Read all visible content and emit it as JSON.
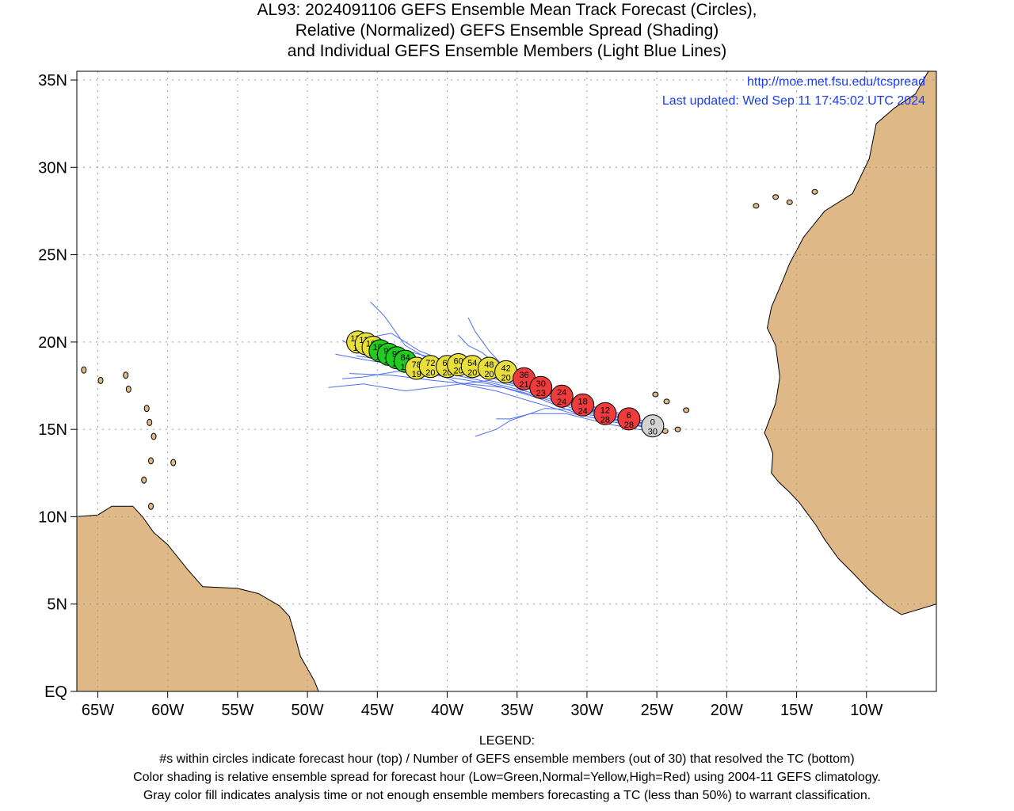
{
  "title": {
    "line1": "AL93: 2024091106 GEFS Ensemble Mean Track Forecast (Circles),",
    "line2": "Relative (Normalized) GEFS Ensemble Spread (Shading)",
    "line3": "and Individual GEFS Ensemble Members (Light Blue Lines)"
  },
  "credits": {
    "url": "http://moe.met.fsu.edu/tcspread",
    "updated": "Last updated: Wed Sep 11 17:45:02 UTC 2024"
  },
  "legend": {
    "heading": "LEGEND:",
    "line1": "#s within circles indicate forecast hour (top) / Number of GEFS ensemble members (out of 30) that resolved the TC (bottom)",
    "line2": "Color shading is relative ensemble spread for forecast hour (Low=Green,Normal=Yellow,High=Red) using 2004-11 GEFS climatology.",
    "line3": "Gray color fill indicates analysis time or not enough ensemble members forecasting a TC (less than 50%) to warrant classification."
  },
  "colors": {
    "land": "#deb887",
    "member_track": "#4f6ff0",
    "low_spread": "#1fcc1f",
    "normal_spread": "#e8df3a",
    "high_spread": "#ee3b3b",
    "analysis": "#d3d3d3",
    "credit_text": "#1a3cf0",
    "grid": "#9a9a9a"
  },
  "chart_data": {
    "type": "scatter",
    "xlim": [
      -66.5,
      -5
    ],
    "ylim": [
      0,
      35.5
    ],
    "x_ticks": [
      -65,
      -60,
      -55,
      -50,
      -45,
      -40,
      -35,
      -30,
      -25,
      -20,
      -15,
      -10
    ],
    "x_tick_labels": [
      "65W",
      "60W",
      "55W",
      "50W",
      "45W",
      "40W",
      "35W",
      "30W",
      "25W",
      "20W",
      "15W",
      "10W"
    ],
    "y_ticks": [
      0,
      5,
      10,
      15,
      20,
      25,
      30,
      35
    ],
    "y_tick_labels": [
      "EQ",
      "5N",
      "10N",
      "15N",
      "20N",
      "25N",
      "30N",
      "35N"
    ],
    "grid": true,
    "mean_track": [
      {
        "hour": "0",
        "members": "30",
        "lon": -25.3,
        "lat": 15.2,
        "spread": "analysis"
      },
      {
        "hour": "6",
        "members": "28",
        "lon": -27.0,
        "lat": 15.6,
        "spread": "high"
      },
      {
        "hour": "12",
        "members": "28",
        "lon": -28.7,
        "lat": 15.9,
        "spread": "high"
      },
      {
        "hour": "18",
        "members": "24",
        "lon": -30.3,
        "lat": 16.4,
        "spread": "high"
      },
      {
        "hour": "24",
        "members": "24",
        "lon": -31.8,
        "lat": 16.9,
        "spread": "high"
      },
      {
        "hour": "30",
        "members": "23",
        "lon": -33.3,
        "lat": 17.4,
        "spread": "high"
      },
      {
        "hour": "36",
        "members": "21",
        "lon": -34.5,
        "lat": 17.9,
        "spread": "high"
      },
      {
        "hour": "42",
        "members": "20",
        "lon": -35.8,
        "lat": 18.3,
        "spread": "normal"
      },
      {
        "hour": "48",
        "members": "20",
        "lon": -37.0,
        "lat": 18.5,
        "spread": "normal"
      },
      {
        "hour": "54",
        "members": "20",
        "lon": -38.2,
        "lat": 18.6,
        "spread": "normal"
      },
      {
        "hour": "60",
        "members": "20",
        "lon": -39.2,
        "lat": 18.7,
        "spread": "normal"
      },
      {
        "hour": "66",
        "members": "20",
        "lon": -40.0,
        "lat": 18.6,
        "spread": "normal"
      },
      {
        "hour": "72",
        "members": "20",
        "lon": -41.2,
        "lat": 18.6,
        "spread": "normal"
      },
      {
        "hour": "78",
        "members": "19",
        "lon": -42.2,
        "lat": 18.5,
        "spread": "normal"
      },
      {
        "hour": "84",
        "members": "18",
        "lon": -43.0,
        "lat": 18.9,
        "spread": "low"
      },
      {
        "hour": "90",
        "members": "18",
        "lon": -43.6,
        "lat": 19.1,
        "spread": "low"
      },
      {
        "hour": "96",
        "members": "18",
        "lon": -44.2,
        "lat": 19.3,
        "spread": "low"
      },
      {
        "hour": "102",
        "members": "18",
        "lon": -44.8,
        "lat": 19.5,
        "spread": "low"
      },
      {
        "hour": "108",
        "members": "17",
        "lon": -45.3,
        "lat": 19.7,
        "spread": "normal"
      },
      {
        "hour": "114",
        "members": "17",
        "lon": -45.8,
        "lat": 19.9,
        "spread": "normal"
      },
      {
        "hour": "120",
        "members": "17",
        "lon": -46.4,
        "lat": 20.0,
        "spread": "normal"
      }
    ],
    "member_tracks": [
      [
        [
          -25.3,
          15.2
        ],
        [
          -28,
          15.8
        ],
        [
          -31,
          16.4
        ],
        [
          -34,
          17.3
        ],
        [
          -37,
          18.0
        ],
        [
          -40,
          18.4
        ],
        [
          -43,
          18.9
        ],
        [
          -46,
          19.4
        ],
        [
          -47.5,
          20.1
        ]
      ],
      [
        [
          -25.3,
          15.0
        ],
        [
          -28,
          15.5
        ],
        [
          -31,
          16.2
        ],
        [
          -34,
          17.0
        ],
        [
          -37,
          17.6
        ],
        [
          -40,
          18.0
        ],
        [
          -43,
          18.4
        ],
        [
          -46,
          18.0
        ],
        [
          -47.5,
          17.9
        ]
      ],
      [
        [
          -25.3,
          15.3
        ],
        [
          -28,
          15.9
        ],
        [
          -31,
          16.6
        ],
        [
          -34,
          17.6
        ],
        [
          -37,
          18.3
        ],
        [
          -39.5,
          18.7
        ],
        [
          -42,
          19.5
        ],
        [
          -44,
          20.5
        ],
        [
          -46,
          20.2
        ]
      ],
      [
        [
          -25.5,
          15.1
        ],
        [
          -28.2,
          15.6
        ],
        [
          -31,
          16.0
        ],
        [
          -33.5,
          16.8
        ],
        [
          -36,
          17.4
        ],
        [
          -38.5,
          17.6
        ],
        [
          -41,
          17.8
        ],
        [
          -44,
          18.1
        ],
        [
          -47,
          18.2
        ]
      ],
      [
        [
          -25.2,
          15.2
        ],
        [
          -28,
          15.7
        ],
        [
          -31,
          16.5
        ],
        [
          -33.5,
          17.4
        ],
        [
          -35.5,
          18.2
        ],
        [
          -37,
          19.5
        ],
        [
          -38,
          20.6
        ],
        [
          -38.5,
          21.4
        ]
      ],
      [
        [
          -25.3,
          15.2
        ],
        [
          -27.5,
          15.7
        ],
        [
          -30,
          16.1
        ],
        [
          -33,
          16.2
        ],
        [
          -35.5,
          15.5
        ],
        [
          -36.5,
          15.0
        ],
        [
          -38,
          14.6
        ]
      ],
      [
        [
          -25.3,
          15.3
        ],
        [
          -28,
          16.0
        ],
        [
          -31,
          16.6
        ],
        [
          -34,
          17.4
        ],
        [
          -37,
          18.0
        ],
        [
          -40,
          18.4
        ],
        [
          -43,
          19.8
        ],
        [
          -44.5,
          21.5
        ],
        [
          -45.5,
          22.3
        ]
      ],
      [
        [
          -25.4,
          15.2
        ],
        [
          -28,
          15.7
        ],
        [
          -31,
          16.4
        ],
        [
          -34,
          17.3
        ],
        [
          -37,
          17.8
        ],
        [
          -40,
          17.5
        ],
        [
          -43,
          17.2
        ],
        [
          -46,
          17.6
        ],
        [
          -48.5,
          17.4
        ]
      ],
      [
        [
          -25.3,
          15.1
        ],
        [
          -28,
          15.4
        ],
        [
          -31,
          15.9
        ],
        [
          -34,
          16.6
        ],
        [
          -36.5,
          17.2
        ],
        [
          -39,
          17.6
        ],
        [
          -42,
          18.6
        ],
        [
          -44.5,
          19.0
        ],
        [
          -46.5,
          19.2
        ]
      ],
      [
        [
          -25.3,
          15.2
        ],
        [
          -28,
          15.8
        ],
        [
          -31,
          16.5
        ],
        [
          -34,
          17.5
        ],
        [
          -36,
          18.4
        ],
        [
          -37.5,
          19.4
        ],
        [
          -38.5,
          19.8
        ],
        [
          -39.2,
          20.4
        ]
      ],
      [
        [
          -25.3,
          15.2
        ],
        [
          -28,
          15.8
        ],
        [
          -31,
          16.5
        ],
        [
          -33.5,
          17.4
        ],
        [
          -36,
          18.0
        ],
        [
          -38.5,
          18.6
        ],
        [
          -41.5,
          19.2
        ],
        [
          -44.5,
          19.8
        ],
        [
          -47,
          20.4
        ]
      ],
      [
        [
          -25.6,
          14.9
        ],
        [
          -28.5,
          15.3
        ],
        [
          -31.5,
          15.9
        ],
        [
          -34,
          15.9
        ],
        [
          -35.5,
          15.6
        ],
        [
          -36.5,
          15.6
        ]
      ],
      [
        [
          -25.3,
          15.2
        ],
        [
          -28,
          15.6
        ],
        [
          -31,
          16.3
        ],
        [
          -34,
          17.1
        ],
        [
          -37,
          17.7
        ],
        [
          -40,
          18.2
        ],
        [
          -43,
          18.6
        ],
        [
          -46,
          19.0
        ],
        [
          -48,
          19.3
        ]
      ]
    ]
  }
}
